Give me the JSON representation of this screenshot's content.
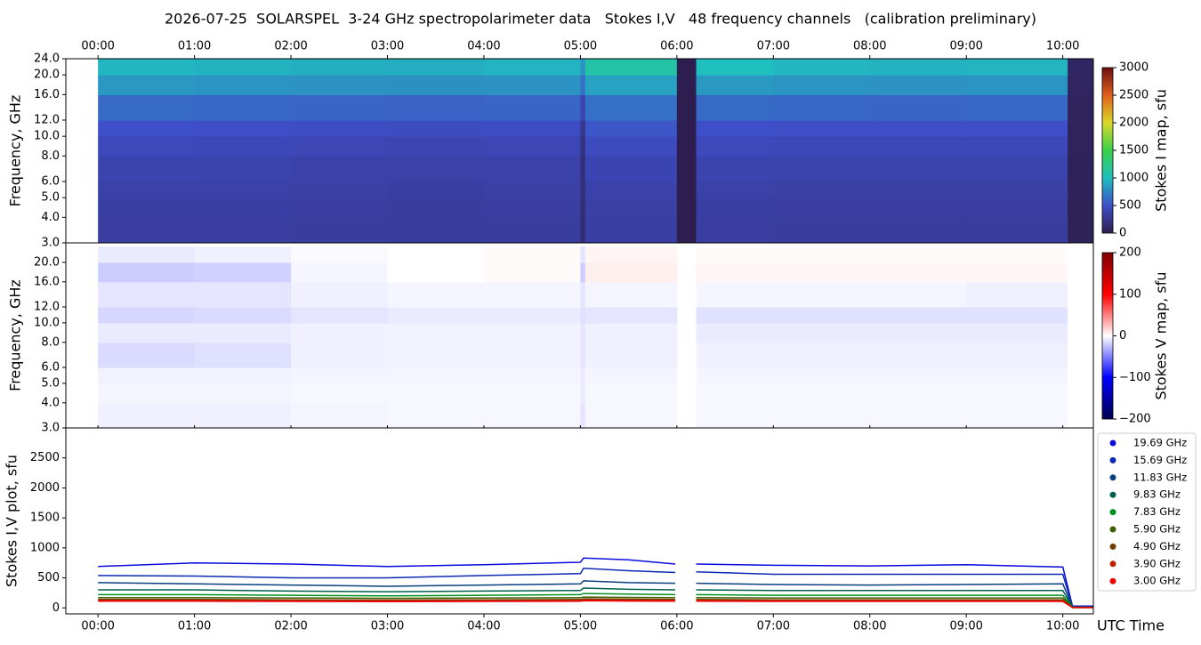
{
  "chart_data": [
    {
      "type": "heatmap",
      "title": "2026-07-25  SOLARSPEL  3-24 GHz spectropolarimeter data   Stokes I,V   48 frequency channels   (calibration preliminary)",
      "ylabel": "Frequency, GHz",
      "ylog": true,
      "xlim": [
        -20,
        619
      ],
      "xticks": [
        {
          "value": 0,
          "label": "00:00"
        },
        {
          "value": 60,
          "label": "01:00"
        },
        {
          "value": 120,
          "label": "02:00"
        },
        {
          "value": 180,
          "label": "03:00"
        },
        {
          "value": 240,
          "label": "04:00"
        },
        {
          "value": 300,
          "label": "05:00"
        },
        {
          "value": 360,
          "label": "06:00"
        },
        {
          "value": 420,
          "label": "07:00"
        },
        {
          "value": 480,
          "label": "08:00"
        },
        {
          "value": 540,
          "label": "09:00"
        },
        {
          "value": 600,
          "label": "10:00"
        }
      ],
      "ylim": [
        3,
        24
      ],
      "yticks": [
        {
          "value": 3,
          "label": "3.0"
        },
        {
          "value": 4,
          "label": "4.0"
        },
        {
          "value": 5,
          "label": "5.0"
        },
        {
          "value": 6,
          "label": "6.0"
        },
        {
          "value": 8,
          "label": "8.0"
        },
        {
          "value": 10,
          "label": "10.0"
        },
        {
          "value": 12,
          "label": "12.0"
        },
        {
          "value": 16,
          "label": "16.0"
        },
        {
          "value": 20,
          "label": "20.0"
        },
        {
          "value": 24,
          "label": "24.0"
        }
      ],
      "xbins": [
        0,
        60,
        120,
        180,
        240,
        300,
        303,
        360,
        372,
        420,
        480,
        540,
        603,
        619
      ],
      "ybins": [
        3,
        4,
        5,
        6,
        8,
        10,
        12,
        16,
        20,
        24
      ],
      "values": [
        [
          330,
          330,
          320,
          310,
          320,
          150,
          340,
          0,
          330,
          320,
          320,
          320,
          40
        ],
        [
          340,
          340,
          330,
          320,
          330,
          160,
          350,
          0,
          340,
          330,
          330,
          330,
          40
        ],
        [
          360,
          360,
          350,
          340,
          350,
          170,
          370,
          0,
          360,
          350,
          350,
          350,
          45
        ],
        [
          390,
          380,
          370,
          360,
          370,
          180,
          400,
          0,
          390,
          380,
          380,
          380,
          45
        ],
        [
          440,
          430,
          420,
          410,
          420,
          200,
          460,
          0,
          440,
          430,
          430,
          430,
          50
        ],
        [
          500,
          490,
          480,
          470,
          480,
          250,
          530,
          0,
          500,
          490,
          490,
          490,
          55
        ],
        [
          620,
          610,
          600,
          590,
          600,
          400,
          650,
          0,
          620,
          610,
          600,
          610,
          60
        ],
        [
          820,
          810,
          800,
          790,
          800,
          650,
          870,
          0,
          830,
          810,
          800,
          810,
          70
        ],
        [
          960,
          940,
          930,
          920,
          950,
          800,
          1100,
          0,
          1000,
          960,
          940,
          950,
          80
        ]
      ],
      "clim": [
        0,
        3000
      ],
      "cticks": [
        0,
        500,
        1000,
        1500,
        2000,
        2500,
        3000
      ],
      "colormap": [
        "#2d1e4f",
        "#3f4fc9",
        "#1fbfbf",
        "#3ad24a",
        "#d8d82a",
        "#e0601c",
        "#6a0f0f"
      ],
      "colorbar_label": "Stokes I map, sfu"
    },
    {
      "type": "heatmap",
      "ylabel": "Frequency, GHz",
      "ylog": true,
      "xlim": [
        -20,
        619
      ],
      "ylim": [
        3,
        25
      ],
      "yticks": [
        {
          "value": 3,
          "label": "3.0"
        },
        {
          "value": 4,
          "label": "4.0"
        },
        {
          "value": 5,
          "label": "5.0"
        },
        {
          "value": 6,
          "label": "6.0"
        },
        {
          "value": 8,
          "label": "8.0"
        },
        {
          "value": 10,
          "label": "10.0"
        },
        {
          "value": 12,
          "label": "12.0"
        },
        {
          "value": 16,
          "label": "16.0"
        },
        {
          "value": 20,
          "label": "20.0"
        }
      ],
      "xbins": [
        0,
        60,
        120,
        180,
        240,
        300,
        303,
        360,
        372,
        420,
        480,
        540,
        603,
        619
      ],
      "ybins": [
        3,
        4,
        5,
        6,
        8,
        10,
        12,
        16,
        20,
        24
      ],
      "values": [
        [
          -6,
          -6,
          -4,
          -3,
          -3,
          -10,
          -3,
          null,
          -3,
          -3,
          -3,
          -3,
          0
        ],
        [
          -4,
          -4,
          -3,
          -3,
          -3,
          -8,
          -3,
          null,
          -3,
          -3,
          -3,
          -3,
          0
        ],
        [
          -5,
          -5,
          -4,
          -4,
          -4,
          -8,
          -4,
          null,
          -4,
          -4,
          -4,
          -4,
          0
        ],
        [
          -14,
          -12,
          -6,
          -5,
          -5,
          -10,
          -6,
          null,
          -6,
          -6,
          -6,
          -6,
          0
        ],
        [
          -8,
          -8,
          -6,
          -5,
          -5,
          -10,
          -6,
          null,
          -8,
          -8,
          -8,
          -8,
          0
        ],
        [
          -16,
          -14,
          -10,
          -8,
          -8,
          -12,
          -10,
          null,
          -12,
          -12,
          -12,
          -12,
          0
        ],
        [
          -10,
          -10,
          -6,
          -4,
          -4,
          -10,
          -4,
          null,
          -4,
          -4,
          -4,
          -6,
          0
        ],
        [
          -20,
          -18,
          -4,
          0,
          2,
          -20,
          6,
          null,
          4,
          4,
          4,
          4,
          0
        ],
        [
          -8,
          -6,
          -2,
          0,
          2,
          -10,
          4,
          null,
          2,
          2,
          2,
          2,
          0
        ]
      ],
      "clim": [
        -200,
        200
      ],
      "cticks": [
        {
          "value": -200,
          "label": "−200"
        },
        {
          "value": -100,
          "label": "−100"
        },
        0,
        100,
        200
      ],
      "colormap": [
        "#000050",
        "#0000ff",
        "#ffffff",
        "#ff0000",
        "#800000"
      ],
      "colorbar_label": "Stokes V map, sfu"
    },
    {
      "type": "line",
      "ylabel": "Stokes I,V plot, sfu",
      "xlabel": "UTC Time",
      "xlim": [
        -20,
        619
      ],
      "xticks": [
        {
          "value": 0,
          "label": "00:00"
        },
        {
          "value": 60,
          "label": "01:00"
        },
        {
          "value": 120,
          "label": "02:00"
        },
        {
          "value": 180,
          "label": "03:00"
        },
        {
          "value": 240,
          "label": "04:00"
        },
        {
          "value": 300,
          "label": "05:00"
        },
        {
          "value": 360,
          "label": "06:00"
        },
        {
          "value": 420,
          "label": "07:00"
        },
        {
          "value": 480,
          "label": "08:00"
        },
        {
          "value": 540,
          "label": "09:00"
        },
        {
          "value": 600,
          "label": "10:00"
        }
      ],
      "ylim": [
        -100,
        3000
      ],
      "yticks": [
        0,
        500,
        1000,
        1500,
        2000,
        2500
      ],
      "legend": "outside right",
      "x": [
        0,
        60,
        120,
        180,
        240,
        300,
        302,
        330,
        359,
        362,
        372,
        420,
        480,
        540,
        600,
        606,
        619
      ],
      "series": [
        {
          "name": "19.69 GHz",
          "color": "#0a0adc",
          "values": [
            690,
            750,
            730,
            690,
            720,
            760,
            830,
            800,
            730,
            null,
            730,
            710,
            700,
            720,
            680,
            30,
            30
          ]
        },
        {
          "name": "15.69 GHz",
          "color": "#0a2ab4",
          "values": [
            540,
            530,
            500,
            500,
            540,
            570,
            660,
            620,
            590,
            null,
            600,
            560,
            560,
            560,
            560,
            20,
            20
          ]
        },
        {
          "name": "11.83 GHz",
          "color": "#084080",
          "values": [
            420,
            400,
            380,
            360,
            380,
            400,
            450,
            420,
            410,
            null,
            410,
            390,
            380,
            390,
            400,
            15,
            15
          ]
        },
        {
          "name": "9.83 GHz",
          "color": "#006050",
          "values": [
            300,
            300,
            280,
            270,
            280,
            290,
            330,
            310,
            300,
            null,
            300,
            290,
            290,
            290,
            290,
            10,
            10
          ]
        },
        {
          "name": "7.83 GHz",
          "color": "#009020",
          "values": [
            220,
            220,
            210,
            200,
            210,
            220,
            240,
            230,
            220,
            null,
            220,
            210,
            210,
            210,
            210,
            10,
            10
          ]
        },
        {
          "name": "5.90 GHz",
          "color": "#406000",
          "values": [
            170,
            170,
            165,
            160,
            165,
            170,
            180,
            175,
            170,
            null,
            170,
            165,
            165,
            165,
            165,
            5,
            5
          ]
        },
        {
          "name": "4.90 GHz",
          "color": "#704000",
          "values": [
            140,
            140,
            135,
            130,
            135,
            140,
            150,
            145,
            140,
            null,
            140,
            135,
            135,
            135,
            135,
            5,
            5
          ]
        },
        {
          "name": "3.90 GHz",
          "color": "#c02000",
          "values": [
            125,
            125,
            120,
            118,
            120,
            125,
            132,
            128,
            125,
            null,
            125,
            120,
            120,
            120,
            120,
            5,
            5
          ]
        },
        {
          "name": "3.00 GHz",
          "color": "#f00000",
          "values": [
            110,
            110,
            108,
            105,
            108,
            110,
            118,
            114,
            110,
            null,
            110,
            108,
            108,
            108,
            108,
            5,
            5
          ]
        }
      ]
    }
  ]
}
